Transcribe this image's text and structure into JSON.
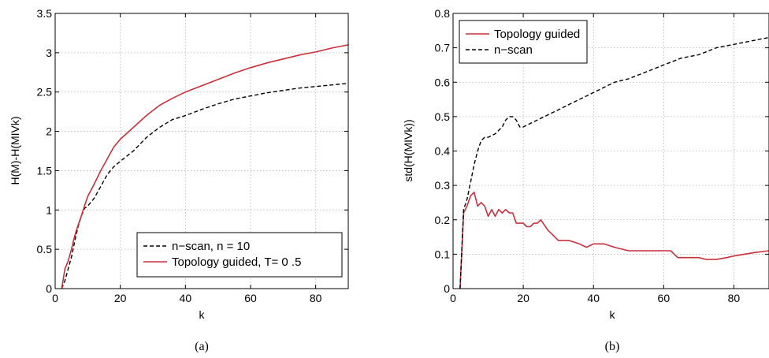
{
  "chart_data": [
    {
      "type": "line",
      "panel_caption": "(a)",
      "xlabel": "k",
      "ylabel": "H(M)-H(MIVk)",
      "xlim": [
        0,
        90
      ],
      "ylim": [
        0,
        3.5
      ],
      "xticks": [
        "0",
        "20",
        "40",
        "60",
        "80"
      ],
      "yticks": [
        "0",
        "0.5",
        "1",
        "1.5",
        "2",
        "2.5",
        "3",
        "3.5"
      ],
      "grid": true,
      "legend_position": "bottom-right",
      "series": [
        {
          "name": "n−scan, n = 10",
          "color": "#000000",
          "style": "dashed",
          "x": [
            2,
            3,
            4,
            5,
            6,
            7,
            8,
            9,
            10,
            12,
            14,
            16,
            18,
            20,
            24,
            28,
            32,
            36,
            40,
            45,
            50,
            55,
            60,
            65,
            70,
            75,
            80,
            85,
            90
          ],
          "y": [
            0,
            0.1,
            0.25,
            0.4,
            0.6,
            0.78,
            0.92,
            1.02,
            1.05,
            1.15,
            1.3,
            1.45,
            1.55,
            1.62,
            1.75,
            1.92,
            2.05,
            2.15,
            2.2,
            2.28,
            2.35,
            2.41,
            2.45,
            2.49,
            2.52,
            2.55,
            2.57,
            2.59,
            2.61
          ]
        },
        {
          "name": "Topology guided, T= 0 .5",
          "color": "#c8303a",
          "style": "solid",
          "x": [
            2,
            3,
            4,
            5,
            6,
            7,
            8,
            9,
            10,
            12,
            14,
            16,
            18,
            20,
            24,
            28,
            32,
            36,
            40,
            45,
            50,
            55,
            60,
            65,
            70,
            75,
            80,
            85,
            90
          ],
          "y": [
            0,
            0.25,
            0.35,
            0.5,
            0.67,
            0.8,
            0.92,
            1.05,
            1.17,
            1.33,
            1.5,
            1.65,
            1.8,
            1.9,
            2.05,
            2.2,
            2.33,
            2.42,
            2.5,
            2.58,
            2.66,
            2.74,
            2.81,
            2.87,
            2.92,
            2.97,
            3.01,
            3.06,
            3.1
          ]
        }
      ]
    },
    {
      "type": "line",
      "panel_caption": "(b)",
      "xlabel": "k",
      "ylabel": "std(H(MIVk))",
      "xlim": [
        0,
        90
      ],
      "ylim": [
        0,
        0.8
      ],
      "xticks": [
        "0",
        "20",
        "40",
        "60",
        "80"
      ],
      "yticks": [
        "0",
        "0.1",
        "0.2",
        "0.3",
        "0.4",
        "0.5",
        "0.6",
        "0.7",
        "0.8"
      ],
      "grid": true,
      "legend_position": "top-left",
      "series": [
        {
          "name": "Topology guided",
          "color": "#c8303a",
          "style": "solid",
          "x": [
            2,
            3,
            4,
            5,
            6,
            7,
            8,
            9,
            10,
            11,
            12,
            13,
            14,
            15,
            16,
            17,
            18,
            19,
            20,
            21,
            22,
            23,
            24,
            25,
            27,
            30,
            33,
            36,
            38,
            40,
            43,
            46,
            50,
            53,
            56,
            60,
            62,
            64,
            66,
            68,
            70,
            72,
            75,
            78,
            80,
            83,
            86,
            90
          ],
          "y": [
            0,
            0.22,
            0.24,
            0.27,
            0.28,
            0.24,
            0.25,
            0.24,
            0.21,
            0.23,
            0.21,
            0.23,
            0.22,
            0.23,
            0.22,
            0.22,
            0.19,
            0.19,
            0.19,
            0.18,
            0.18,
            0.19,
            0.19,
            0.2,
            0.17,
            0.14,
            0.14,
            0.13,
            0.12,
            0.13,
            0.13,
            0.12,
            0.11,
            0.11,
            0.11,
            0.11,
            0.11,
            0.09,
            0.09,
            0.09,
            0.09,
            0.085,
            0.085,
            0.09,
            0.095,
            0.1,
            0.105,
            0.11
          ]
        },
        {
          "name": "n−scan",
          "color": "#000000",
          "style": "dashed",
          "x": [
            2,
            3,
            4,
            5,
            6,
            7,
            8,
            9,
            10,
            12,
            14,
            15,
            16,
            17,
            18,
            19,
            20,
            22,
            24,
            26,
            28,
            30,
            34,
            38,
            42,
            46,
            50,
            55,
            60,
            65,
            70,
            75,
            80,
            85,
            90
          ],
          "y": [
            0,
            0.23,
            0.26,
            0.31,
            0.36,
            0.4,
            0.43,
            0.44,
            0.44,
            0.45,
            0.47,
            0.49,
            0.5,
            0.5,
            0.49,
            0.47,
            0.47,
            0.48,
            0.49,
            0.5,
            0.51,
            0.52,
            0.54,
            0.56,
            0.58,
            0.6,
            0.61,
            0.63,
            0.65,
            0.67,
            0.68,
            0.7,
            0.71,
            0.72,
            0.73
          ]
        }
      ]
    }
  ]
}
